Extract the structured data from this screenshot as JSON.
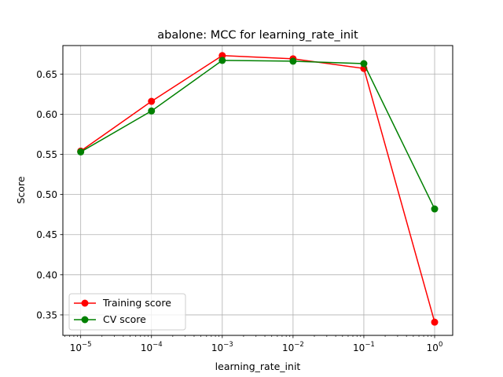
{
  "chart_data": {
    "type": "line",
    "title": "abalone: MCC for learning_rate_init",
    "xlabel": "learning_rate_init",
    "ylabel": "Score",
    "x": [
      1e-05,
      0.0001,
      0.001,
      0.01,
      0.1,
      1
    ],
    "x_tick_labels": [
      {
        "base": "10",
        "exp": "−5"
      },
      {
        "base": "10",
        "exp": "−4"
      },
      {
        "base": "10",
        "exp": "−3"
      },
      {
        "base": "10",
        "exp": "−2"
      },
      {
        "base": "10",
        "exp": "−1"
      },
      {
        "base": "10",
        "exp": "0"
      }
    ],
    "y_ticks": [
      "0.35",
      "0.40",
      "0.45",
      "0.50",
      "0.55",
      "0.60",
      "0.65"
    ],
    "x_scale": "log",
    "xlim": [
      5.6e-06,
      1.8
    ],
    "ylim": [
      0.3245,
      0.6855
    ],
    "grid": true,
    "legend_position": "lower-left",
    "series": [
      {
        "name": "Training score",
        "color": "#ff0000",
        "values": [
          0.554,
          0.616,
          0.673,
          0.669,
          0.657,
          0.341
        ]
      },
      {
        "name": "CV score",
        "color": "#008000",
        "values": [
          0.553,
          0.604,
          0.667,
          0.666,
          0.663,
          0.482
        ]
      }
    ]
  }
}
